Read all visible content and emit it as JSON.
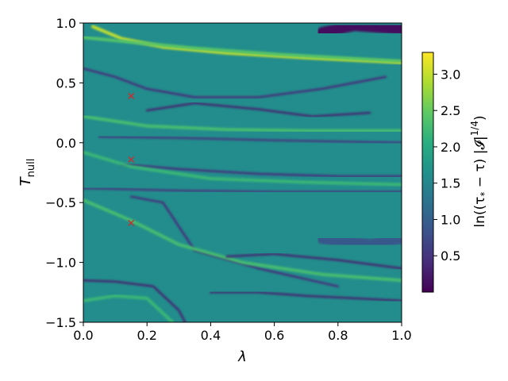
{
  "chart_data": {
    "type": "heatmap",
    "title": "",
    "xlabel": "λ",
    "ylabel_main": "T",
    "ylabel_sub": "null",
    "xlim": [
      0.0,
      1.0
    ],
    "ylim": [
      -1.5,
      1.0
    ],
    "x_ticks": [
      "0.0",
      "0.2",
      "0.4",
      "0.6",
      "0.8",
      "1.0"
    ],
    "x_tick_values": [
      0.0,
      0.2,
      0.4,
      0.6,
      0.8,
      1.0
    ],
    "y_ticks": [
      "−1.5",
      "−1.0",
      "−0.5",
      "0.0",
      "0.5",
      "1.0"
    ],
    "y_tick_values": [
      -1.5,
      -1.0,
      -0.5,
      0.0,
      0.5,
      1.0
    ],
    "colormap": "viridis",
    "colorbar": {
      "label": "ln((τ* − τ)|𝓘|^(1/4))",
      "label_prefix": "ln",
      "label_body": "((τ",
      "label_sub": "*",
      "label_mid": " − τ) |𝓘|",
      "label_sup": "1/4",
      "label_end": ")",
      "range": [
        0.0,
        3.3
      ],
      "ticks": [
        "0.5",
        "1.0",
        "1.5",
        "2.0",
        "2.5",
        "3.0"
      ],
      "tick_values": [
        0.5,
        1.0,
        1.5,
        2.0,
        2.5,
        3.0
      ]
    },
    "markers": {
      "symbol": "x",
      "color": "#d62728",
      "points": [
        {
          "x": 0.15,
          "y": 0.39
        },
        {
          "x": 0.15,
          "y": -0.14
        },
        {
          "x": 0.15,
          "y": -0.67
        }
      ]
    },
    "background_value": 1.6,
    "features": [
      {
        "kind": "ridge",
        "value": 3.0,
        "points": [
          [
            0.03,
            0.97
          ],
          [
            0.12,
            0.87
          ],
          [
            0.25,
            0.8
          ],
          [
            0.45,
            0.75
          ],
          [
            0.7,
            0.71
          ],
          [
            1.0,
            0.67
          ]
        ]
      },
      {
        "kind": "ridge",
        "value": 2.4,
        "points": [
          [
            0.0,
            0.88
          ],
          [
            0.15,
            0.84
          ],
          [
            0.35,
            0.79
          ],
          [
            0.6,
            0.74
          ],
          [
            1.0,
            0.68
          ]
        ]
      },
      {
        "kind": "trough",
        "value": 0.4,
        "points": [
          [
            0.0,
            0.62
          ],
          [
            0.1,
            0.55
          ],
          [
            0.2,
            0.45
          ],
          [
            0.35,
            0.38
          ],
          [
            0.55,
            0.38
          ],
          [
            0.75,
            0.45
          ],
          [
            0.95,
            0.55
          ]
        ]
      },
      {
        "kind": "trough",
        "value": 0.3,
        "points": [
          [
            0.2,
            0.27
          ],
          [
            0.35,
            0.33
          ],
          [
            0.55,
            0.28
          ],
          [
            0.72,
            0.22
          ],
          [
            0.9,
            0.25
          ]
        ]
      },
      {
        "kind": "ridge",
        "value": 2.3,
        "points": [
          [
            0.0,
            0.22
          ],
          [
            0.2,
            0.14
          ],
          [
            0.45,
            0.11
          ],
          [
            0.7,
            0.1
          ],
          [
            1.0,
            0.1
          ]
        ]
      },
      {
        "kind": "trough",
        "value": 0.5,
        "points": [
          [
            0.05,
            0.05
          ],
          [
            0.3,
            0.04
          ],
          [
            0.6,
            0.02
          ],
          [
            1.0,
            0.0
          ]
        ]
      },
      {
        "kind": "trough",
        "value": 0.4,
        "points": [
          [
            0.12,
            -0.18
          ],
          [
            0.3,
            -0.22
          ],
          [
            0.55,
            -0.26
          ],
          [
            0.8,
            -0.28
          ],
          [
            1.0,
            -0.28
          ]
        ]
      },
      {
        "kind": "ridge",
        "value": 2.2,
        "points": [
          [
            0.0,
            -0.08
          ],
          [
            0.15,
            -0.2
          ],
          [
            0.4,
            -0.3
          ],
          [
            0.7,
            -0.33
          ],
          [
            1.0,
            -0.35
          ]
        ]
      },
      {
        "kind": "trough",
        "value": 0.5,
        "points": [
          [
            0.0,
            -0.38
          ],
          [
            0.3,
            -0.4
          ],
          [
            0.6,
            -0.41
          ],
          [
            1.0,
            -0.41
          ]
        ]
      },
      {
        "kind": "trough",
        "value": 0.4,
        "points": [
          [
            0.15,
            -0.45
          ],
          [
            0.25,
            -0.5
          ],
          [
            0.35,
            -0.9
          ],
          [
            0.55,
            -1.05
          ],
          [
            0.8,
            -1.2
          ]
        ]
      },
      {
        "kind": "ridge",
        "value": 2.3,
        "points": [
          [
            0.0,
            -0.48
          ],
          [
            0.15,
            -0.65
          ],
          [
            0.3,
            -0.85
          ],
          [
            0.5,
            -1.0
          ],
          [
            0.75,
            -1.1
          ],
          [
            1.0,
            -1.15
          ]
        ]
      },
      {
        "kind": "trough",
        "value": 0.3,
        "points": [
          [
            0.45,
            -0.95
          ],
          [
            0.6,
            -0.93
          ],
          [
            0.8,
            -0.98
          ],
          [
            1.0,
            -1.05
          ]
        ]
      },
      {
        "kind": "trough",
        "value": 0.3,
        "points": [
          [
            0.0,
            -1.15
          ],
          [
            0.1,
            -1.16
          ],
          [
            0.22,
            -1.2
          ],
          [
            0.3,
            -1.4
          ],
          [
            0.32,
            -1.5
          ]
        ]
      },
      {
        "kind": "ridge",
        "value": 2.2,
        "points": [
          [
            0.0,
            -1.32
          ],
          [
            0.1,
            -1.28
          ],
          [
            0.2,
            -1.3
          ],
          [
            0.28,
            -1.5
          ]
        ]
      },
      {
        "kind": "trough",
        "value": 0.3,
        "points": [
          [
            0.4,
            -1.25
          ],
          [
            0.55,
            -1.25
          ],
          [
            0.7,
            -1.28
          ],
          [
            0.85,
            -1.3
          ],
          [
            1.0,
            -1.32
          ]
        ]
      },
      {
        "kind": "dark_region",
        "value": 0.1,
        "points": [
          [
            0.75,
            0.92
          ],
          [
            0.85,
            0.98
          ],
          [
            1.0,
            0.95
          ]
        ]
      },
      {
        "kind": "dark_region",
        "value": 0.9,
        "points": [
          [
            0.75,
            -0.8
          ],
          [
            0.9,
            -0.85
          ],
          [
            1.0,
            -0.8
          ]
        ]
      }
    ]
  }
}
